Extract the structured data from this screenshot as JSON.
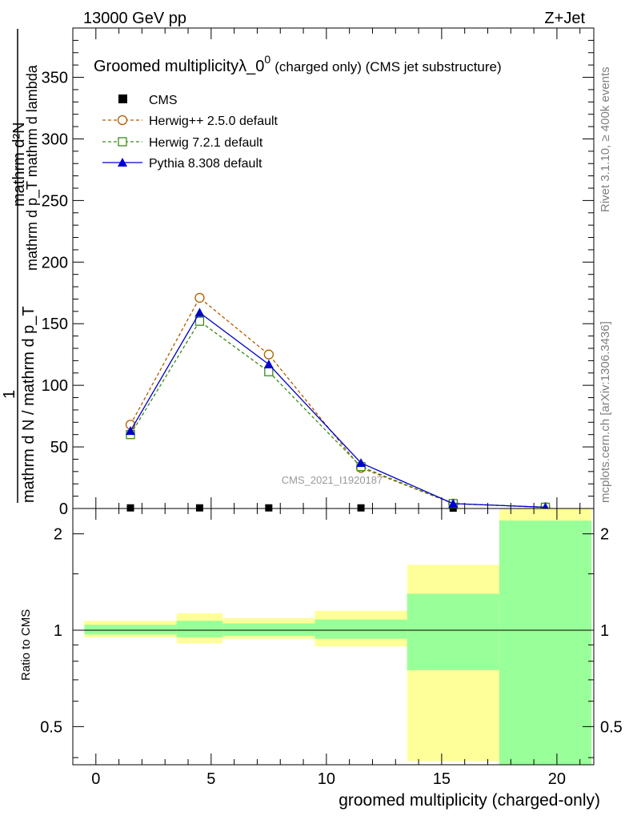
{
  "header": {
    "left": "13000 GeV pp",
    "right": "Z+Jet"
  },
  "side": {
    "rivet": "Rivet 3.1.10, ≥ 400k events",
    "mcplots": "mcplots.cern.ch [arXiv:1306.3436]"
  },
  "watermark": "CMS_2021_I1920187",
  "colors": {
    "herwig_pp": "#b35a00",
    "herwig7": "#3a8a1a",
    "pythia": "#0000cc",
    "band_inner": "#99ff99",
    "band_outer": "#ffff99"
  },
  "chart_data": [
    {
      "type": "line",
      "panel": "main",
      "title_main": "Groomed multiplicityλ_0",
      "title_sup": "0",
      "title_suffix": "(charged only) (CMS jet substructure)",
      "ylabel_upper": "mathrm d²N",
      "ylabel_upper_sub": "mathrm d p_T mathrm d lambda",
      "ylabel_prefix": "1",
      "ylabel_lower": "mathrm d N / mathrm d p_T",
      "xlim": [
        -1,
        21.6
      ],
      "ylim": [
        0,
        390
      ],
      "yticks": [
        50,
        100,
        150,
        200,
        250,
        300,
        350
      ],
      "ytick_labels": [
        "50",
        "100",
        "150",
        "200",
        "250",
        "300",
        "350"
      ],
      "x": [
        1.5,
        4.5,
        7.5,
        11.5,
        15.5,
        19.5
      ],
      "series": [
        {
          "name": "CMS",
          "style": "data",
          "values": [
            0.5,
            0.5,
            0.5,
            0.5,
            0.3,
            0.2
          ]
        },
        {
          "name": "Herwig++ 2.5.0 default",
          "style": "circle-dashed",
          "values": [
            68,
            171,
            125,
            33,
            4,
            1
          ]
        },
        {
          "name": "Herwig 7.2.1 default",
          "style": "square-dashed",
          "values": [
            60,
            152,
            111,
            34,
            4,
            1
          ]
        },
        {
          "name": "Pythia 8.308 default",
          "style": "triangle-solid",
          "values": [
            63,
            159,
            117,
            37,
            4,
            1
          ]
        }
      ],
      "legend": [
        "CMS",
        "Herwig++ 2.5.0 default",
        "Herwig 7.2.1 default",
        "Pythia 8.308 default"
      ]
    },
    {
      "type": "area",
      "panel": "ratio",
      "ylabel": "Ratio to CMS",
      "xlabel": "groomed multiplicity (charged-only)",
      "xlim": [
        -1,
        21.6
      ],
      "ylim": [
        0.38,
        2.4
      ],
      "log_y": true,
      "yticks": [
        0.5,
        1,
        2
      ],
      "ytick_labels": [
        "0.5",
        "1",
        "2"
      ],
      "xticks": [
        0,
        5,
        10,
        15,
        20
      ],
      "xtick_labels": [
        "0",
        "5",
        "10",
        "15",
        "20"
      ],
      "reference": 1,
      "bins": [
        {
          "lo": -0.5,
          "hi": 3.5,
          "outer": [
            0.95,
            1.07
          ],
          "inner": [
            0.97,
            1.04
          ]
        },
        {
          "lo": 3.5,
          "hi": 5.5,
          "outer": [
            0.91,
            1.13
          ],
          "inner": [
            0.95,
            1.07
          ]
        },
        {
          "lo": 5.5,
          "hi": 9.5,
          "outer": [
            0.94,
            1.09
          ],
          "inner": [
            0.96,
            1.05
          ]
        },
        {
          "lo": 9.5,
          "hi": 13.5,
          "outer": [
            0.89,
            1.15
          ],
          "inner": [
            0.94,
            1.08
          ]
        },
        {
          "lo": 13.5,
          "hi": 17.5,
          "outer": [
            0.39,
            1.6
          ],
          "inner": [
            0.75,
            1.3
          ]
        },
        {
          "lo": 17.5,
          "hi": 21.5,
          "outer": [
            0.3,
            2.5
          ],
          "inner": [
            0.3,
            2.2
          ]
        }
      ]
    }
  ]
}
